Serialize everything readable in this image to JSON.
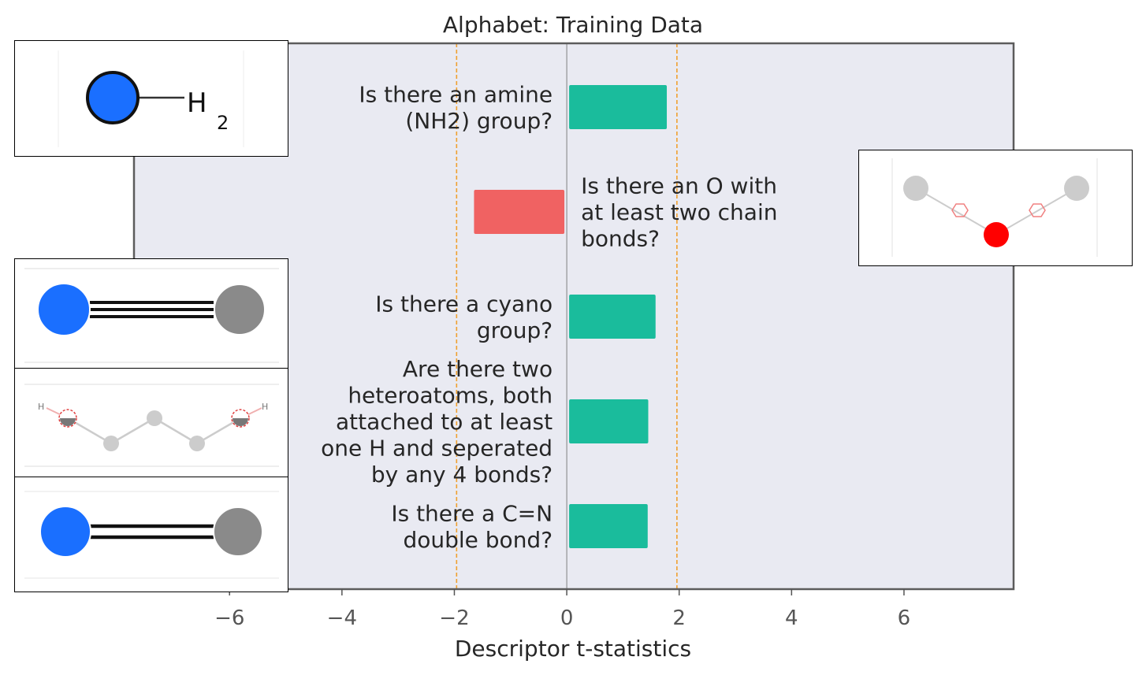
{
  "chart_data": {
    "type": "bar",
    "orientation": "horizontal",
    "title": "Alphabet: Training Data",
    "xlabel": "Descriptor t-statistics",
    "ylabel": "",
    "xlim": [
      -7.7,
      7.95
    ],
    "xticks": [
      -6,
      -4,
      -2,
      0,
      2,
      4,
      6
    ],
    "xtick_labels": [
      "−6",
      "−4",
      "−2",
      "0",
      "2",
      "4",
      "6"
    ],
    "significance_lines": [
      -1.96,
      1.96
    ],
    "grid": false,
    "categories": [
      "Is there an amine (NH2) group?",
      "Is there an O with at least two chain bonds?",
      "Is there a cyano group?",
      "Are there two heteroatoms, both attached to at least one H and seperated by any 4 bonds?",
      "Is there a C=N double bond?"
    ],
    "label_lines": [
      [
        "Is there an amine",
        "(NH2) group?"
      ],
      [
        "Is there an O with",
        "at least two chain",
        "bonds?"
      ],
      [
        "Is there a cyano",
        "group?"
      ],
      [
        "Are there two",
        "heteroatoms, both",
        "attached to at least",
        "one H and seperated",
        "by any 4 bonds?"
      ],
      [
        "Is there a C=N",
        "double bond?"
      ]
    ],
    "values": [
      1.78,
      -1.65,
      1.58,
      1.45,
      1.44
    ]
  },
  "colors": {
    "positive": "#1abc9c",
    "negative": "#f06262",
    "plot_background": "#e9eaf2",
    "significance_line": "#f0a030",
    "zero_line": "#808080",
    "axes_frame": "#5c5c5c"
  },
  "molecules": [
    {
      "id": "amine",
      "icon": "amine-molecule-icon",
      "text": [
        "H",
        "2"
      ]
    },
    {
      "id": "cyano",
      "icon": "cyano-molecule-icon"
    },
    {
      "id": "diol",
      "icon": "heteroatom-chain-molecule-icon",
      "text": [
        "H",
        "H"
      ]
    },
    {
      "id": "imine",
      "icon": "imine-molecule-icon"
    },
    {
      "id": "ether",
      "icon": "ether-molecule-icon"
    }
  ]
}
